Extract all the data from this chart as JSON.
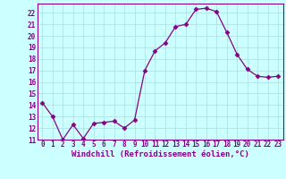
{
  "x": [
    0,
    1,
    2,
    3,
    4,
    5,
    6,
    7,
    8,
    9,
    10,
    11,
    12,
    13,
    14,
    15,
    16,
    17,
    18,
    19,
    20,
    21,
    22,
    23
  ],
  "y": [
    14.2,
    13.0,
    11.0,
    12.3,
    11.1,
    12.4,
    12.5,
    12.6,
    12.0,
    12.7,
    17.0,
    18.7,
    19.4,
    20.8,
    21.0,
    22.3,
    22.4,
    22.1,
    20.3,
    18.4,
    17.1,
    16.5,
    16.4,
    16.5
  ],
  "line_color": "#880088",
  "marker": "D",
  "marker_size": 2.5,
  "bg_color": "#ccffff",
  "grid_color": "#aadddd",
  "xlabel": "Windchill (Refroidissement éolien,°C)",
  "ylim": [
    11,
    22.8
  ],
  "xlim": [
    -0.5,
    23.5
  ],
  "yticks": [
    11,
    12,
    13,
    14,
    15,
    16,
    17,
    18,
    19,
    20,
    21,
    22
  ],
  "xticks": [
    0,
    1,
    2,
    3,
    4,
    5,
    6,
    7,
    8,
    9,
    10,
    11,
    12,
    13,
    14,
    15,
    16,
    17,
    18,
    19,
    20,
    21,
    22,
    23
  ],
  "tick_fontsize": 5.5,
  "label_fontsize": 6.5,
  "tick_color": "#880088",
  "label_color": "#880088",
  "spine_color": "#880088"
}
